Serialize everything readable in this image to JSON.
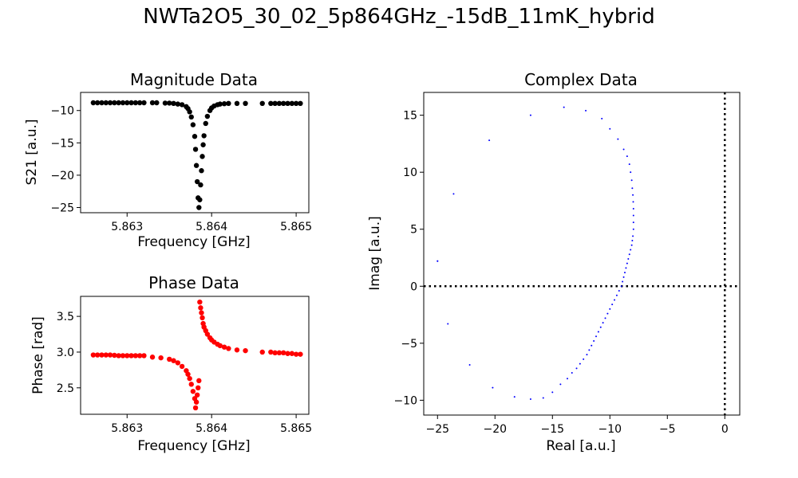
{
  "figure": {
    "suptitle": "NWTa2O5_30_02_5p864GHz_-15dB_11mK_hybrid"
  },
  "colors": {
    "magnitude": "#000000",
    "phase": "#ff0000",
    "complex": "#0000ff",
    "axes": "#000000"
  },
  "chart_data": [
    {
      "id": "magnitude",
      "type": "scatter",
      "title": "Magnitude Data",
      "xlabel": "Frequency [GHz]",
      "ylabel": "S21 [a.u.]",
      "xlim": [
        5.86245,
        5.86515
      ],
      "ylim": [
        -25.8,
        -7.2
      ],
      "xticks": [
        5.863,
        5.864,
        5.865
      ],
      "xtick_labels": [
        "5.863",
        "5.864",
        "5.865"
      ],
      "yticks": [
        -25,
        -20,
        -15,
        -10
      ],
      "ytick_labels": [
        "−25",
        "−20",
        "−15",
        "−10"
      ],
      "grid": false,
      "series": [
        {
          "x": [
            5.8626,
            5.86265,
            5.8627,
            5.86275,
            5.8628,
            5.86285,
            5.8629,
            5.86295,
            5.863,
            5.86305,
            5.8631,
            5.86315,
            5.8632,
            5.8633,
            5.86335,
            5.86345,
            5.8635,
            5.86355,
            5.8636,
            5.86365,
            5.8637,
            5.86372,
            5.86374,
            5.86376,
            5.86378,
            5.8638,
            5.86381,
            5.86382,
            5.86383,
            5.86384,
            5.86385,
            5.86386,
            5.86387,
            5.86388,
            5.86389,
            5.8639,
            5.86391,
            5.86393,
            5.86395,
            5.86398,
            5.864,
            5.86403,
            5.86407,
            5.8641,
            5.86415,
            5.8642,
            5.8643,
            5.8644,
            5.8646,
            5.8647,
            5.86475,
            5.8648,
            5.86485,
            5.8649,
            5.86495,
            5.865,
            5.86505
          ],
          "y": [
            -8.8,
            -8.8,
            -8.8,
            -8.8,
            -8.8,
            -8.8,
            -8.8,
            -8.8,
            -8.8,
            -8.8,
            -8.8,
            -8.8,
            -8.8,
            -8.8,
            -8.8,
            -8.85,
            -8.85,
            -8.9,
            -9.0,
            -9.1,
            -9.4,
            -9.7,
            -10.2,
            -11,
            -12.2,
            -14,
            -16,
            -18.5,
            -21,
            -23.5,
            -25.0,
            -23.8,
            -21.5,
            -19.3,
            -17.1,
            -15.3,
            -13.9,
            -12.0,
            -10.9,
            -10.0,
            -9.6,
            -9.3,
            -9.1,
            -9.0,
            -8.95,
            -8.9,
            -8.9,
            -8.9,
            -8.9,
            -8.9,
            -8.9,
            -8.9,
            -8.9,
            -8.9,
            -8.9,
            -8.9,
            -8.9
          ]
        }
      ]
    },
    {
      "id": "phase",
      "type": "scatter",
      "title": "Phase Data",
      "xlabel": "Frequency [GHz]",
      "ylabel": "Phase [rad]",
      "xlim": [
        5.86245,
        5.86515
      ],
      "ylim": [
        2.13,
        3.78
      ],
      "xticks": [
        5.863,
        5.864,
        5.865
      ],
      "xtick_labels": [
        "5.863",
        "5.864",
        "5.865"
      ],
      "yticks": [
        2.5,
        3.0,
        3.5
      ],
      "ytick_labels": [
        "2.5",
        "3.0",
        "3.5"
      ],
      "grid": false,
      "series": [
        {
          "x": [
            5.8626,
            5.86265,
            5.8627,
            5.86275,
            5.8628,
            5.86285,
            5.8629,
            5.86295,
            5.863,
            5.86305,
            5.8631,
            5.86315,
            5.8632,
            5.8633,
            5.8634,
            5.8635,
            5.86355,
            5.8636,
            5.86365,
            5.8637,
            5.86372,
            5.86374,
            5.86376,
            5.86378,
            5.8638,
            5.86381,
            5.86382,
            5.86383,
            5.86384,
            5.86385,
            5.86386,
            5.86387,
            5.86388,
            5.86389,
            5.8639,
            5.86391,
            5.86393,
            5.86395,
            5.86398,
            5.864,
            5.86403,
            5.86407,
            5.8641,
            5.86415,
            5.8642,
            5.8643,
            5.8644,
            5.8646,
            5.8647,
            5.86475,
            5.8648,
            5.86485,
            5.8649,
            5.86495,
            5.865,
            5.86505
          ],
          "y": [
            2.96,
            2.96,
            2.96,
            2.96,
            2.96,
            2.955,
            2.95,
            2.95,
            2.95,
            2.95,
            2.95,
            2.95,
            2.95,
            2.93,
            2.92,
            2.9,
            2.88,
            2.85,
            2.8,
            2.74,
            2.69,
            2.63,
            2.55,
            2.45,
            2.35,
            2.22,
            2.3,
            2.4,
            2.5,
            2.6,
            3.7,
            3.62,
            3.55,
            3.48,
            3.4,
            3.35,
            3.3,
            3.25,
            3.2,
            3.17,
            3.14,
            3.11,
            3.09,
            3.07,
            3.05,
            3.03,
            3.02,
            3.0,
            3.0,
            2.99,
            2.99,
            2.99,
            2.98,
            2.98,
            2.97,
            2.97
          ]
        }
      ]
    },
    {
      "id": "complex",
      "type": "scatter",
      "title": "Complex Data",
      "xlabel": "Real [a.u.]",
      "ylabel": "Imag [a.u.]",
      "xlim": [
        -26.2,
        1.3
      ],
      "ylim": [
        -11.3,
        17.0
      ],
      "xticks": [
        -25,
        -20,
        -15,
        -10,
        -5,
        0
      ],
      "xtick_labels": [
        "−25",
        "−20",
        "−15",
        "−10",
        "−5",
        "0"
      ],
      "yticks": [
        -10,
        -5,
        0,
        5,
        10,
        15
      ],
      "ytick_labels": [
        "−10",
        "−5",
        "0",
        "5",
        "10",
        "15"
      ],
      "grid": false,
      "reference_lines": {
        "x": 0,
        "y": 0,
        "style": "dotted"
      },
      "series": [
        {
          "x": [
            -25.0,
            -24.1,
            -22.2,
            -20.2,
            -18.3,
            -16.9,
            -15.8,
            -15.0,
            -14.3,
            -13.7,
            -13.3,
            -12.9,
            -12.6,
            -12.3,
            -12.0,
            -11.8,
            -11.6,
            -11.4,
            -11.2,
            -11.0,
            -10.8,
            -10.6,
            -10.4,
            -10.2,
            -10.0,
            -9.8,
            -9.6,
            -9.4,
            -9.2,
            -9.0,
            -8.9,
            -8.8,
            -8.7,
            -8.6,
            -8.5,
            -8.4,
            -8.3,
            -8.2,
            -8.1,
            -8.05,
            -8.0,
            -7.95,
            -7.95,
            -7.95,
            -7.95,
            -7.97,
            -8.0,
            -8.05,
            -8.1,
            -8.2,
            -8.3,
            -8.5,
            -8.8,
            -9.3,
            -10.0,
            -10.7,
            -12.1,
            -14.0,
            -16.9,
            -20.5,
            -23.6,
            -25.0
          ],
          "y": [
            2.2,
            -3.3,
            -6.9,
            -8.9,
            -9.7,
            -9.9,
            -9.8,
            -9.3,
            -8.6,
            -8.1,
            -7.6,
            -7.2,
            -6.8,
            -6.4,
            -6.0,
            -5.6,
            -5.2,
            -4.8,
            -4.4,
            -4.0,
            -3.6,
            -3.2,
            -2.8,
            -2.4,
            -2.0,
            -1.6,
            -1.2,
            -0.8,
            -0.4,
            0.0,
            0.4,
            0.8,
            1.2,
            1.6,
            2.0,
            2.4,
            2.8,
            3.2,
            3.6,
            4.0,
            4.4,
            5.0,
            5.6,
            6.2,
            6.8,
            7.4,
            8.0,
            8.6,
            9.3,
            10.0,
            10.7,
            11.4,
            12.0,
            12.9,
            13.8,
            14.7,
            15.4,
            15.7,
            15.0,
            12.8,
            8.1,
            2.2
          ]
        }
      ]
    }
  ]
}
